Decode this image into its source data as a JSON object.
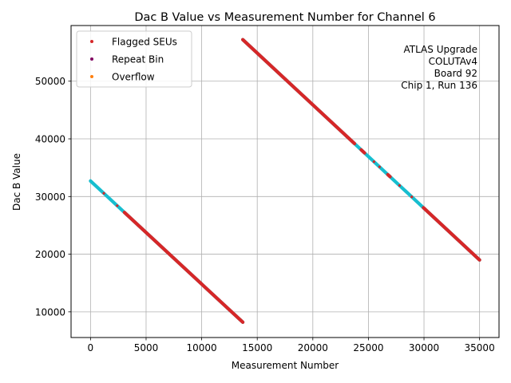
{
  "chart_data": {
    "type": "scatter",
    "title": "Dac B Value vs Measurement Number for Channel 6",
    "xlabel": "Measurement Number",
    "ylabel": "Dac B Value",
    "xlim": [
      -1750,
      36750
    ],
    "ylim": [
      5550,
      59650
    ],
    "xticks": [
      0,
      5000,
      10000,
      15000,
      20000,
      25000,
      30000,
      35000
    ],
    "yticks": [
      10000,
      20000,
      30000,
      40000,
      50000
    ],
    "grid": true,
    "legend_position": "top-left",
    "legend": [
      {
        "label": "Flagged SEUs",
        "color": "#d62728"
      },
      {
        "label": "Repeat Bin",
        "color": "#800060"
      },
      {
        "label": "Overflow",
        "color": "#ff7f0e"
      }
    ],
    "annotation": [
      "ATLAS Upgrade",
      "COLUTAv4",
      "Board 92",
      "Chip 1, Run 136"
    ],
    "base_color": "#17becf",
    "segments": [
      {
        "x": [
          0,
          13700
        ],
        "y": [
          32700,
          8200
        ]
      },
      {
        "x": [
          13700,
          35000
        ],
        "y": [
          57200,
          19000
        ]
      }
    ],
    "cyan_ranges": [
      {
        "x": [
          0,
          3000
        ]
      },
      {
        "x": [
          23800,
          24300
        ]
      },
      {
        "x": [
          24700,
          26700
        ]
      },
      {
        "x": [
          27000,
          29900
        ]
      }
    ]
  }
}
